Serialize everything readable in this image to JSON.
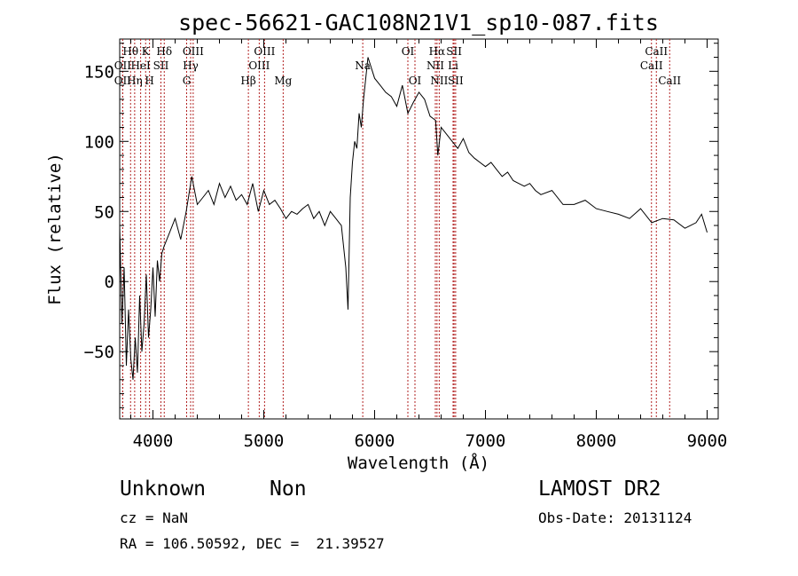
{
  "chart_data": {
    "type": "line",
    "title": "spec-56621-GAC108N21V1_sp10-087.fits",
    "xlabel": "Wavelength (Å)",
    "ylabel": "Flux (relative)",
    "xlim": [
      3700,
      9100
    ],
    "ylim": [
      -98,
      173
    ],
    "xticks": [
      4000,
      5000,
      6000,
      7000,
      8000,
      9000
    ],
    "yticks": [
      -50,
      0,
      50,
      100,
      150
    ],
    "xtick_labels": [
      "4000",
      "5000",
      "6000",
      "7000",
      "8000",
      "9000"
    ],
    "ytick_labels": [
      "−50",
      "0",
      "50",
      "100",
      "150"
    ],
    "grid": false,
    "line_color": "#000000",
    "marker_color": "#b22222",
    "spectrum": {
      "x": [
        3700,
        3720,
        3740,
        3760,
        3780,
        3800,
        3820,
        3840,
        3860,
        3880,
        3900,
        3920,
        3940,
        3960,
        3980,
        4000,
        4020,
        4040,
        4060,
        4080,
        4100,
        4150,
        4200,
        4250,
        4300,
        4350,
        4400,
        4450,
        4500,
        4550,
        4600,
        4650,
        4700,
        4750,
        4800,
        4850,
        4900,
        4950,
        5000,
        5050,
        5100,
        5150,
        5200,
        5250,
        5300,
        5350,
        5400,
        5450,
        5500,
        5550,
        5600,
        5650,
        5700,
        5740,
        5760,
        5780,
        5800,
        5820,
        5840,
        5860,
        5880,
        5900,
        5920,
        5940,
        5960,
        5980,
        6000,
        6050,
        6100,
        6150,
        6200,
        6250,
        6300,
        6350,
        6400,
        6450,
        6500,
        6550,
        6570,
        6600,
        6650,
        6700,
        6750,
        6800,
        6850,
        6900,
        6950,
        7000,
        7050,
        7100,
        7150,
        7200,
        7250,
        7300,
        7350,
        7400,
        7450,
        7500,
        7600,
        7700,
        7800,
        7900,
        8000,
        8100,
        8200,
        8300,
        8400,
        8500,
        8600,
        8700,
        8800,
        8900,
        8950,
        9000
      ],
      "y": [
        40,
        -30,
        10,
        -60,
        -20,
        -55,
        -70,
        -40,
        -65,
        -10,
        -50,
        -30,
        5,
        -40,
        -20,
        10,
        -25,
        15,
        0,
        20,
        25,
        35,
        45,
        30,
        50,
        75,
        55,
        60,
        65,
        55,
        70,
        60,
        68,
        58,
        62,
        55,
        70,
        50,
        65,
        55,
        58,
        52,
        45,
        50,
        48,
        52,
        55,
        45,
        50,
        40,
        50,
        45,
        40,
        10,
        -20,
        60,
        85,
        100,
        95,
        120,
        110,
        130,
        145,
        160,
        155,
        150,
        145,
        140,
        135,
        132,
        125,
        140,
        120,
        128,
        135,
        130,
        118,
        115,
        90,
        110,
        105,
        100,
        95,
        102,
        92,
        88,
        85,
        82,
        85,
        80,
        75,
        78,
        72,
        70,
        68,
        70,
        65,
        62,
        65,
        55,
        55,
        58,
        52,
        50,
        48,
        45,
        52,
        42,
        45,
        44,
        38,
        42,
        48,
        35
      ]
    },
    "line_markers": [
      {
        "label": "Hθ",
        "wavelength": 3798,
        "row": 1
      },
      {
        "label": "OII",
        "wavelength": 3727,
        "row": 2
      },
      {
        "label": "OII",
        "wavelength": 3727,
        "row": 3
      },
      {
        "label": "Hη",
        "wavelength": 3835,
        "row": 3
      },
      {
        "label": "K",
        "wavelength": 3934,
        "row": 1
      },
      {
        "label": "HeI",
        "wavelength": 3889,
        "row": 2
      },
      {
        "label": "H",
        "wavelength": 3969,
        "row": 3
      },
      {
        "label": "SII",
        "wavelength": 4072,
        "row": 2
      },
      {
        "label": "Hδ",
        "wavelength": 4102,
        "row": 1
      },
      {
        "label": "OIII",
        "wavelength": 4363,
        "row": 1
      },
      {
        "label": "Hγ",
        "wavelength": 4340,
        "row": 2
      },
      {
        "label": "G",
        "wavelength": 4304,
        "row": 3
      },
      {
        "label": "Hβ",
        "wavelength": 4861,
        "row": 3
      },
      {
        "label": "OIII",
        "wavelength": 5007,
        "row": 1
      },
      {
        "label": "OIII",
        "wavelength": 4959,
        "row": 2
      },
      {
        "label": "Mg",
        "wavelength": 5175,
        "row": 3
      },
      {
        "label": "Na",
        "wavelength": 5893,
        "row": 2
      },
      {
        "label": "OI",
        "wavelength": 6300,
        "row": 1
      },
      {
        "label": "OI",
        "wavelength": 6364,
        "row": 3
      },
      {
        "label": "Hα",
        "wavelength": 6563,
        "row": 1
      },
      {
        "label": "NII",
        "wavelength": 6548,
        "row": 2
      },
      {
        "label": "NII",
        "wavelength": 6583,
        "row": 3
      },
      {
        "label": "SII",
        "wavelength": 6717,
        "row": 1
      },
      {
        "label": "Li",
        "wavelength": 6708,
        "row": 2
      },
      {
        "label": "SII",
        "wavelength": 6731,
        "row": 3
      },
      {
        "label": "CaII",
        "wavelength": 8542,
        "row": 1
      },
      {
        "label": "CaII",
        "wavelength": 8498,
        "row": 2
      },
      {
        "label": "CaII",
        "wavelength": 8662,
        "row": 3
      }
    ]
  },
  "info": {
    "class": "Unknown",
    "subclass": "Non",
    "survey": "LAMOST DR2",
    "redshift": "cz = NaN",
    "obs_date": "Obs-Date: 20131124",
    "coords": "RA = 106.50592, DEC =  21.39527"
  }
}
